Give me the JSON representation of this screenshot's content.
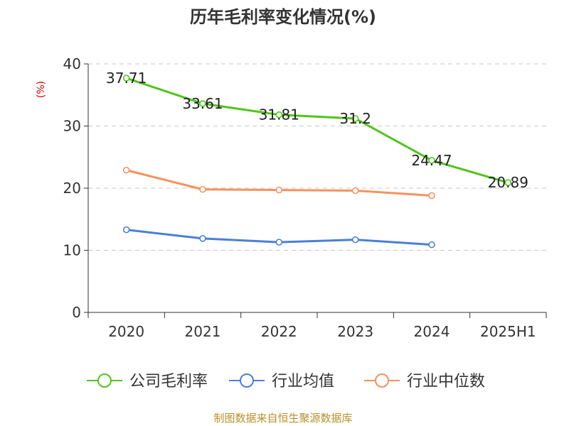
{
  "chart_data": {
    "type": "line",
    "title": "历年毛利率变化情况(%)",
    "ylabel": "(%)",
    "ylim": [
      0,
      40
    ],
    "yticks": [
      0,
      10,
      20,
      30,
      40
    ],
    "grid": true,
    "legend_position": "bottom",
    "categories": [
      "2020",
      "2021",
      "2022",
      "2023",
      "2024",
      "2025H1"
    ],
    "series": [
      {
        "name": "公司毛利率",
        "color": "#52c41a",
        "values": [
          37.71,
          33.61,
          31.81,
          31.2,
          24.47,
          20.89
        ],
        "show_labels": true
      },
      {
        "name": "行业均值",
        "color": "#4a7fd9",
        "values": [
          13.3,
          11.9,
          11.3,
          11.7,
          10.9,
          null
        ],
        "show_labels": false
      },
      {
        "name": "行业中位数",
        "color": "#f5925e",
        "values": [
          22.9,
          19.8,
          19.7,
          19.6,
          18.8,
          null
        ],
        "show_labels": false
      }
    ]
  },
  "footer": "制图数据来自恒生聚源数据库"
}
